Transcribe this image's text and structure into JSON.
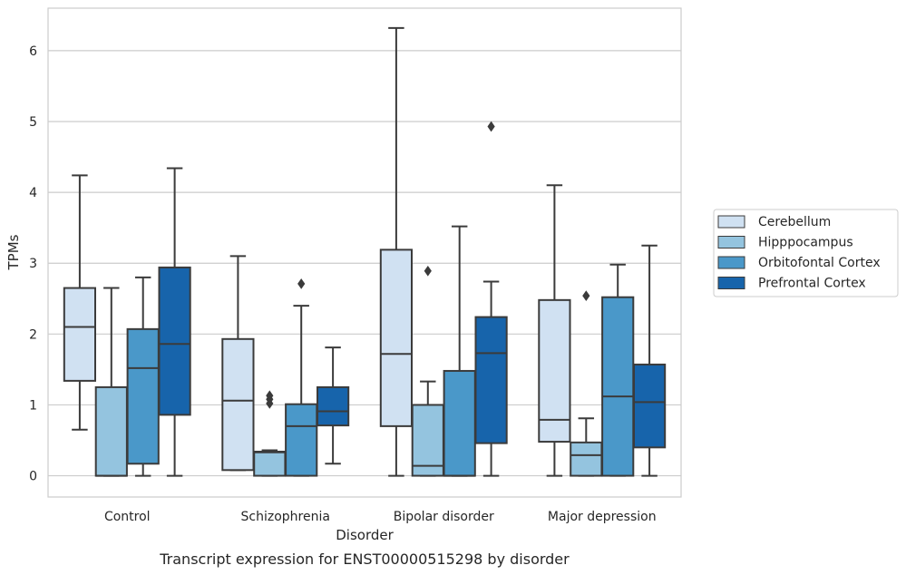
{
  "chart_data": {
    "type": "box",
    "title": "",
    "caption": "Transcript expression for ENST00000515298 by disorder",
    "xlabel": "Disorder",
    "ylabel": "TPMs",
    "ylim": [
      -0.3,
      6.6
    ],
    "yticks": [
      0,
      1,
      2,
      3,
      4,
      5,
      6
    ],
    "grid": "horizontal",
    "legend_position": "right",
    "categories": [
      "Control",
      "Schizophrenia",
      "Bipolar disorder",
      "Major depression"
    ],
    "series": [
      {
        "name": "Cerebellum",
        "color": "#d0e1f2",
        "boxes": [
          {
            "min": 0.65,
            "q1": 1.34,
            "median": 2.1,
            "q3": 2.65,
            "max": 4.24,
            "outliers": []
          },
          {
            "min": 0.08,
            "q1": 0.08,
            "median": 1.06,
            "q3": 1.93,
            "max": 3.1,
            "outliers": []
          },
          {
            "min": 0.0,
            "q1": 0.7,
            "median": 1.72,
            "q3": 3.19,
            "max": 6.32,
            "outliers": []
          },
          {
            "min": 0.0,
            "q1": 0.48,
            "median": 0.79,
            "q3": 2.48,
            "max": 4.1,
            "outliers": []
          }
        ]
      },
      {
        "name": "Hipppocampus",
        "color": "#94c4df",
        "boxes": [
          {
            "min": 0.0,
            "q1": 0.0,
            "median": 0.0,
            "q3": 1.25,
            "max": 2.65,
            "outliers": []
          },
          {
            "min": 0.0,
            "q1": 0.0,
            "median": 0.33,
            "q3": 0.34,
            "max": 0.36,
            "outliers": [
              1.02,
              1.08,
              1.13
            ]
          },
          {
            "min": 0.0,
            "q1": 0.0,
            "median": 0.14,
            "q3": 1.0,
            "max": 1.33,
            "outliers": [
              2.89
            ]
          },
          {
            "min": 0.0,
            "q1": 0.0,
            "median": 0.29,
            "q3": 0.47,
            "max": 0.81,
            "outliers": [
              2.54
            ]
          }
        ]
      },
      {
        "name": "Orbitofontal Cortex",
        "color": "#4a98c9",
        "boxes": [
          {
            "min": 0.0,
            "q1": 0.17,
            "median": 1.52,
            "q3": 2.07,
            "max": 2.8,
            "outliers": []
          },
          {
            "min": 0.0,
            "q1": 0.0,
            "median": 0.7,
            "q3": 1.01,
            "max": 2.4,
            "outliers": [
              2.71
            ]
          },
          {
            "min": 0.0,
            "q1": 0.0,
            "median": 0.0,
            "q3": 1.48,
            "max": 3.52,
            "outliers": []
          },
          {
            "min": 0.0,
            "q1": 0.0,
            "median": 1.12,
            "q3": 2.52,
            "max": 2.98,
            "outliers": []
          }
        ]
      },
      {
        "name": "Prefrontal Cortex",
        "color": "#1764ab",
        "boxes": [
          {
            "min": 0.0,
            "q1": 0.86,
            "median": 1.86,
            "q3": 2.94,
            "max": 4.34,
            "outliers": []
          },
          {
            "min": 0.17,
            "q1": 0.71,
            "median": 0.91,
            "q3": 1.25,
            "max": 1.81,
            "outliers": []
          },
          {
            "min": 0.0,
            "q1": 0.46,
            "median": 1.73,
            "q3": 2.24,
            "max": 2.74,
            "outliers": [
              4.93
            ]
          },
          {
            "min": 0.0,
            "q1": 0.4,
            "median": 1.04,
            "q3": 1.57,
            "max": 3.25,
            "outliers": []
          }
        ]
      }
    ]
  }
}
